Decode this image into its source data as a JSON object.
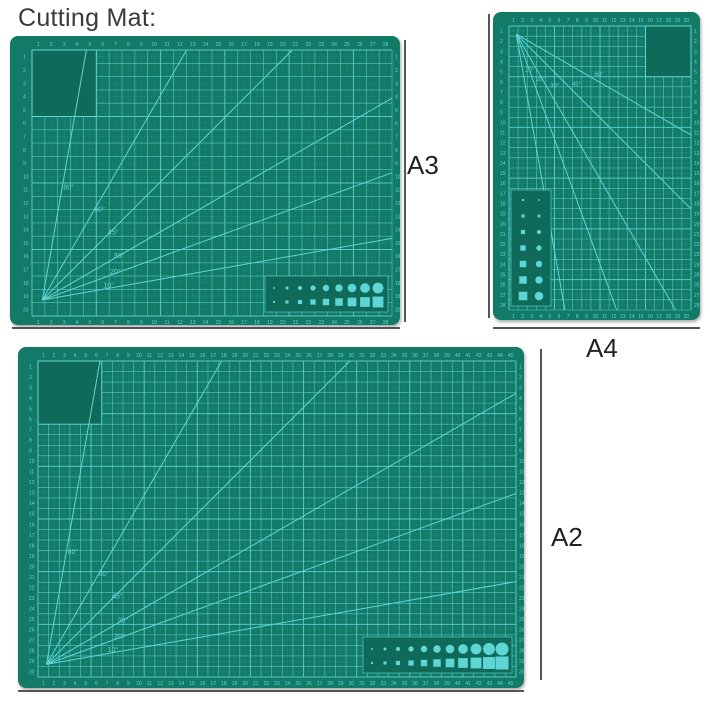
{
  "title": "Cutting Mat:",
  "colors": {
    "mat": "#137a68",
    "mat_dark": "#0f6a59",
    "grid": "#5fd6d6",
    "grid_minor": "#3fb3b0",
    "text": "#222222"
  },
  "mats": [
    {
      "id": "a3",
      "label": "A3",
      "columns": 28,
      "rows": 20,
      "fan_origin": "bottom-left",
      "angles": [
        "10°",
        "20°",
        "30°",
        "45°",
        "60°",
        "80°"
      ],
      "shape_guides": 9
    },
    {
      "id": "a4",
      "label": "A4",
      "columns": 20,
      "rows": 28,
      "fan_origin": "top-left",
      "angles": [
        "10°",
        "20°",
        "30°",
        "45°",
        "60°"
      ],
      "shape_guides": 7
    },
    {
      "id": "a2",
      "label": "A2",
      "columns": 45,
      "rows": 30,
      "fan_origin": "bottom-left",
      "angles": [
        "10°",
        "20°",
        "30°",
        "45°",
        "60°",
        "80°"
      ],
      "shape_guides": 11
    }
  ]
}
